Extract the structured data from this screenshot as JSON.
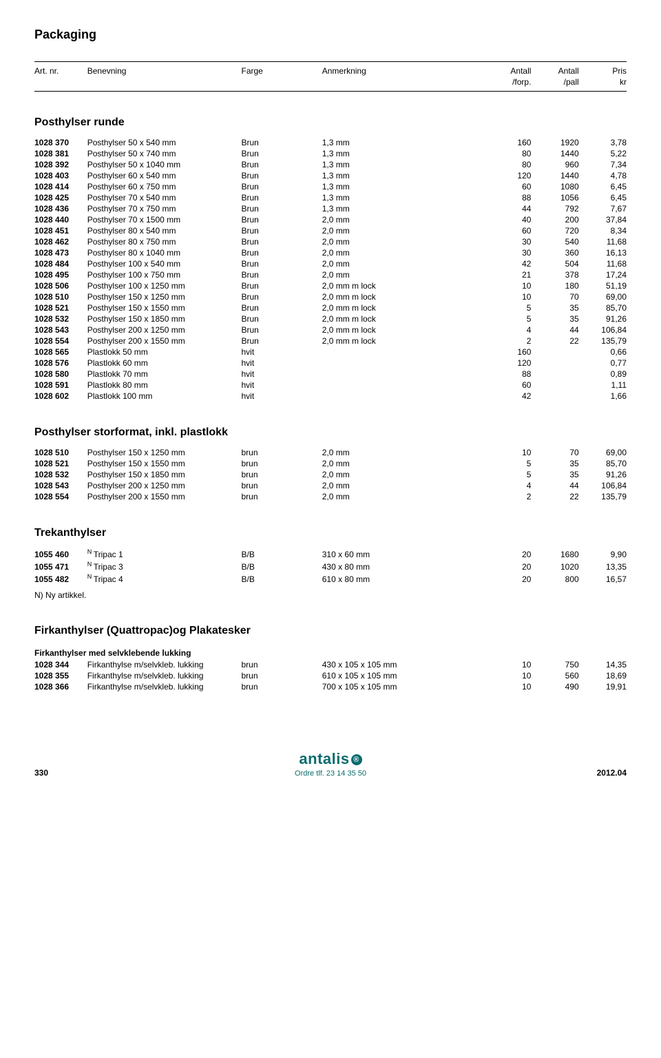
{
  "title": "Packaging",
  "header": {
    "art": "Art. nr.",
    "benevning": "Benevning",
    "farge": "Farge",
    "anmerkning": "Anmerkning",
    "antall": "Antall",
    "forp": "/forp.",
    "pall": "/pall",
    "pris": "Pris",
    "kr": "kr"
  },
  "sections": [
    {
      "title": "Posthylser runde",
      "rows": [
        [
          "1028 370",
          "Posthylser 50 x 540 mm",
          "Brun",
          "1,3 mm",
          "160",
          "1920",
          "3,78"
        ],
        [
          "1028 381",
          "Posthylser 50 x 740 mm",
          "Brun",
          "1,3 mm",
          "80",
          "1440",
          "5,22"
        ],
        [
          "1028 392",
          "Posthylser 50 x 1040 mm",
          "Brun",
          "1,3 mm",
          "80",
          "960",
          "7,34"
        ],
        [
          "1028 403",
          "Posthylser 60 x 540 mm",
          "Brun",
          "1,3 mm",
          "120",
          "1440",
          "4,78"
        ],
        [
          "1028 414",
          "Posthylser 60 x 750 mm",
          "Brun",
          "1,3 mm",
          "60",
          "1080",
          "6,45"
        ],
        [
          "1028 425",
          "Posthylser 70 x 540 mm",
          "Brun",
          "1,3 mm",
          "88",
          "1056",
          "6,45"
        ],
        [
          "1028 436",
          "Posthylser 70 x 750 mm",
          "Brun",
          "1,3 mm",
          "44",
          "792",
          "7,67"
        ],
        [
          "1028 440",
          "Posthylser 70 x 1500 mm",
          "Brun",
          "2,0 mm",
          "40",
          "200",
          "37,84"
        ],
        [
          "1028 451",
          "Posthylser 80 x 540 mm",
          "Brun",
          "2,0 mm",
          "60",
          "720",
          "8,34"
        ],
        [
          "1028 462",
          "Posthylser 80 x 750 mm",
          "Brun",
          "2,0 mm",
          "30",
          "540",
          "11,68"
        ],
        [
          "1028 473",
          "Posthylser 80 x 1040 mm",
          "Brun",
          "2,0 mm",
          "30",
          "360",
          "16,13"
        ],
        [
          "1028 484",
          "Posthylser 100 x 540 mm",
          "Brun",
          "2,0 mm",
          "42",
          "504",
          "11,68"
        ],
        [
          "1028 495",
          "Posthylser 100 x 750 mm",
          "Brun",
          "2,0 mm",
          "21",
          "378",
          "17,24"
        ],
        [
          "1028 506",
          "Posthylser 100 x 1250 mm",
          "Brun",
          "2,0 mm m lock",
          "10",
          "180",
          "51,19"
        ],
        [
          "1028 510",
          "Posthylser 150 x 1250 mm",
          "Brun",
          "2,0 mm m lock",
          "10",
          "70",
          "69,00"
        ],
        [
          "1028 521",
          "Posthylser 150 x 1550 mm",
          "Brun",
          "2,0 mm m lock",
          "5",
          "35",
          "85,70"
        ],
        [
          "1028 532",
          "Posthylser 150 x 1850 mm",
          "Brun",
          "2,0 mm m lock",
          "5",
          "35",
          "91,26"
        ],
        [
          "1028 543",
          "Posthylser 200 x 1250 mm",
          "Brun",
          "2,0 mm m lock",
          "4",
          "44",
          "106,84"
        ],
        [
          "1028 554",
          "Posthylser 200 x 1550 mm",
          "Brun",
          "2,0 mm m lock",
          "2",
          "22",
          "135,79"
        ],
        [
          "1028 565",
          "Plastlokk 50 mm",
          "hvit",
          "",
          "160",
          "",
          "0,66"
        ],
        [
          "1028 576",
          "Plastlokk 60 mm",
          "hvit",
          "",
          "120",
          "",
          "0,77"
        ],
        [
          "1028 580",
          "Plastlokk 70 mm",
          "hvit",
          "",
          "88",
          "",
          "0,89"
        ],
        [
          "1028 591",
          "Plastlokk 80 mm",
          "hvit",
          "",
          "60",
          "",
          "1,11"
        ],
        [
          "1028 602",
          "Plastlokk 100 mm",
          "hvit",
          "",
          "42",
          "",
          "1,66"
        ]
      ]
    },
    {
      "title": "Posthylser storformat, inkl. plastlokk",
      "rows": [
        [
          "1028 510",
          "Posthylser 150 x 1250 mm",
          "brun",
          "2,0 mm",
          "10",
          "70",
          "69,00"
        ],
        [
          "1028 521",
          "Posthylser 150 x 1550 mm",
          "brun",
          "2,0 mm",
          "5",
          "35",
          "85,70"
        ],
        [
          "1028 532",
          "Posthylser 150 x 1850 mm",
          "brun",
          "2,0 mm",
          "5",
          "35",
          "91,26"
        ],
        [
          "1028 543",
          "Posthylser 200 x 1250 mm",
          "brun",
          "2,0 mm",
          "4",
          "44",
          "106,84"
        ],
        [
          "1028 554",
          "Posthylser 200 x 1550 mm",
          "brun",
          "2,0 mm",
          "2",
          "22",
          "135,79"
        ]
      ]
    },
    {
      "title": "Trekanthylser",
      "sup": "N",
      "rows": [
        [
          "1055 460",
          "Tripac 1",
          "B/B",
          "310 x 60 mm",
          "20",
          "1680",
          "9,90"
        ],
        [
          "1055 471",
          "Tripac 3",
          "B/B",
          "430 x 80 mm",
          "20",
          "1020",
          "13,35"
        ],
        [
          "1055 482",
          "Tripac 4",
          "B/B",
          "610 x 80 mm",
          "20",
          "800",
          "16,57"
        ]
      ],
      "note": "N) Ny artikkel."
    },
    {
      "title": "Firkanthylser (Quattropac)og Plakatesker",
      "subheading": "Firkanthylser med selvklebende lukking",
      "rows": [
        [
          "1028 344",
          "Firkanthylse m/selvkleb. lukking",
          "brun",
          "430 x 105 x 105 mm",
          "10",
          "750",
          "14,35"
        ],
        [
          "1028 355",
          "Firkanthylse m/selvkleb. lukking",
          "brun",
          "610 x 105 x 105 mm",
          "10",
          "560",
          "18,69"
        ],
        [
          "1028 366",
          "Firkanthylse m/selvkleb. lukking",
          "brun",
          "700 x 105 x 105 mm",
          "10",
          "490",
          "19,91"
        ]
      ]
    }
  ],
  "footer": {
    "page": "330",
    "logo": "antalis",
    "tagline": "Ordre tlf. 23 14 35 50",
    "date": "2012.04"
  }
}
